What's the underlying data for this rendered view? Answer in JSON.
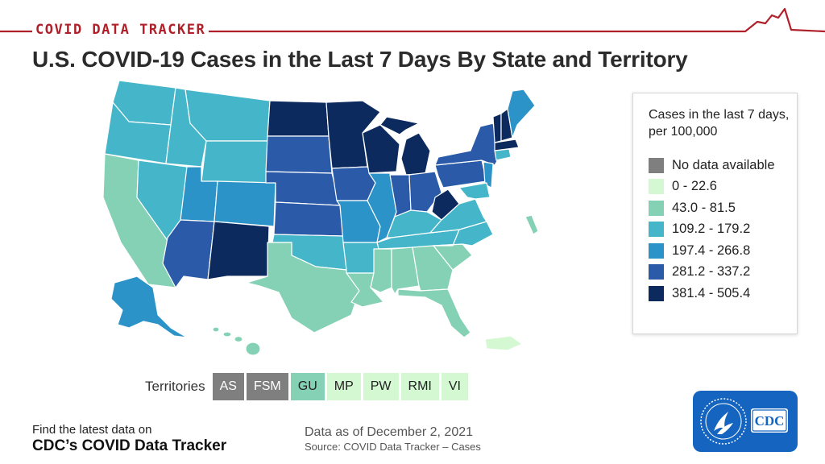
{
  "header": {
    "banner_title": "COVID DATA TRACKER",
    "title": "U.S. COVID-19 Cases in the Last 7 Days By State and Territory"
  },
  "legend": {
    "title": "Cases in the last 7 days, per 100,000",
    "items": [
      {
        "label": "No data available",
        "color": "#7f7f7f"
      },
      {
        "label": "0 - 22.6",
        "color": "#d4f8d2"
      },
      {
        "label": "43.0 - 81.5",
        "color": "#84d1b5"
      },
      {
        "label": "109.2 - 179.2",
        "color": "#45b6c9"
      },
      {
        "label": "197.4 - 266.8",
        "color": "#2b93c7"
      },
      {
        "label": "281.2 - 337.2",
        "color": "#2a5aa8"
      },
      {
        "label": "381.4 - 505.4",
        "color": "#0c2a5e"
      }
    ]
  },
  "territories": {
    "label": "Territories",
    "items": [
      {
        "code": "AS",
        "color": "#7f7f7f"
      },
      {
        "code": "FSM",
        "color": "#7f7f7f"
      },
      {
        "code": "GU",
        "color": "#84d1b5"
      },
      {
        "code": "MP",
        "color": "#d4f8d2"
      },
      {
        "code": "PW",
        "color": "#d4f8d2"
      },
      {
        "code": "RMI",
        "color": "#d4f8d2"
      },
      {
        "code": "VI",
        "color": "#d4f8d2"
      }
    ]
  },
  "footer": {
    "find_line": "Find the latest data on",
    "tracker_line": "CDC’s COVID Data Tracker",
    "as_of": "Data as of December 2, 2021",
    "source": "Source: COVID Data Tracker – Cases"
  },
  "logo": {
    "text": "CDC",
    "color": "#1565c0"
  },
  "colors": {
    "accent_red": "#b0202a"
  }
}
